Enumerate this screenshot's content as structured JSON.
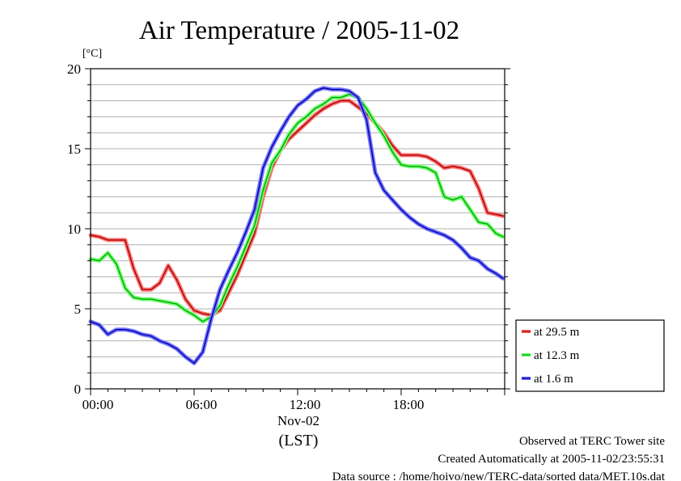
{
  "chart_data": {
    "type": "line",
    "title": "Air Temperature / 2005-11-02",
    "ylabel": "[°C]",
    "xlabel": "(LST)",
    "x_date_label": "Nov-02",
    "xlim": [
      0,
      24
    ],
    "ylim": [
      0,
      20
    ],
    "grid": true,
    "legend_position": "outside-right",
    "x_ticks": [
      {
        "value": 0,
        "label": "00:00"
      },
      {
        "value": 6,
        "label": "06:00"
      },
      {
        "value": 12,
        "label": "12:00"
      },
      {
        "value": 18,
        "label": "18:00"
      }
    ],
    "y_ticks": [
      {
        "value": 0,
        "label": "0"
      },
      {
        "value": 5,
        "label": "5"
      },
      {
        "value": 10,
        "label": "10"
      },
      {
        "value": 15,
        "label": "15"
      },
      {
        "value": 20,
        "label": "20"
      }
    ],
    "x": [
      0,
      0.5,
      1,
      1.5,
      2,
      2.5,
      3,
      3.5,
      4,
      4.5,
      5,
      5.5,
      6,
      6.5,
      7,
      7.5,
      8,
      8.5,
      9,
      9.5,
      10,
      10.5,
      11,
      11.5,
      12,
      12.5,
      13,
      13.5,
      14,
      14.5,
      15,
      15.5,
      16,
      16.5,
      17,
      17.5,
      18,
      18.5,
      19,
      19.5,
      20,
      20.5,
      21,
      21.5,
      22,
      22.5,
      23,
      23.5,
      23.9
    ],
    "series": [
      {
        "name": "at 29.5 m",
        "color": "#ff0000",
        "values": [
          9.6,
          9.5,
          9.3,
          9.3,
          9.3,
          7.5,
          6.2,
          6.2,
          6.6,
          7.7,
          6.8,
          5.6,
          4.9,
          4.7,
          4.6,
          4.9,
          6.0,
          7.1,
          8.4,
          9.7,
          12.0,
          13.8,
          14.9,
          15.6,
          16.1,
          16.6,
          17.1,
          17.5,
          17.8,
          18.0,
          18.0,
          17.6,
          17.2,
          16.6,
          16.0,
          15.2,
          14.6,
          14.6,
          14.6,
          14.5,
          14.2,
          13.8,
          13.9,
          13.8,
          13.6,
          12.5,
          11.0,
          10.9,
          10.8
        ]
      },
      {
        "name": "at 12.3 m",
        "color": "#00ff00",
        "values": [
          8.1,
          8.0,
          8.5,
          7.8,
          6.3,
          5.7,
          5.6,
          5.6,
          5.5,
          5.4,
          5.3,
          4.9,
          4.6,
          4.2,
          4.5,
          5.2,
          6.5,
          7.6,
          8.9,
          10.2,
          12.4,
          14.1,
          14.9,
          15.9,
          16.6,
          17.0,
          17.5,
          17.8,
          18.2,
          18.2,
          18.4,
          18.2,
          17.5,
          16.6,
          15.8,
          14.8,
          14.0,
          13.9,
          13.9,
          13.8,
          13.5,
          12.0,
          11.8,
          12.0,
          11.2,
          10.4,
          10.3,
          9.7,
          9.5
        ]
      },
      {
        "name": "at 1.6 m",
        "color": "#0000ff",
        "values": [
          4.2,
          4.0,
          3.4,
          3.7,
          3.7,
          3.6,
          3.4,
          3.3,
          3.0,
          2.8,
          2.5,
          2.0,
          1.6,
          2.3,
          4.4,
          6.2,
          7.4,
          8.5,
          9.8,
          11.2,
          13.8,
          15.1,
          16.1,
          17.0,
          17.7,
          18.1,
          18.6,
          18.8,
          18.7,
          18.7,
          18.6,
          18.2,
          16.8,
          13.5,
          12.4,
          11.8,
          11.2,
          10.7,
          10.3,
          10.0,
          9.8,
          9.6,
          9.3,
          8.8,
          8.2,
          8.0,
          7.5,
          7.2,
          6.9
        ]
      }
    ]
  },
  "notes": {
    "line1": "Observed at TERC Tower site",
    "line2": "Created Automatically at 2005-11-02/23:55:31",
    "line3": "Data source : /home/hoivo/new/TERC-data/sorted  data/MET.10s.dat"
  }
}
